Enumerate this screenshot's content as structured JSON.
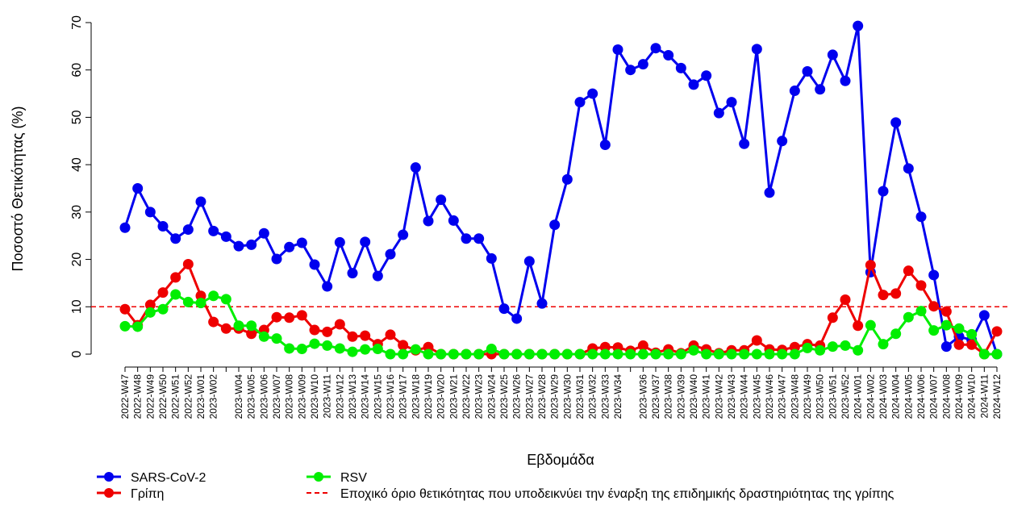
{
  "chart_data": {
    "type": "line",
    "x_label": "Εβδομάδα",
    "y_label": "Ποσοστό Θετικότητας (%)",
    "categories": [
      "2022-W47",
      "2022-W48",
      "2022-W49",
      "2022-W50",
      "2022-W51",
      "2022-W52",
      "2023-W01",
      "2023-W02",
      null,
      "2023-W04",
      "2023-W05",
      "2023-W06",
      "2023-W07",
      "2023-W08",
      "2023-W09",
      "2023-W10",
      "2023-W11",
      "2023-W12",
      "2023-W13",
      "2023-W14",
      "2023-W15",
      "2023-W16",
      "2023-W17",
      "2023-W18",
      "2023-W19",
      "2023-W20",
      "2023-W21",
      "2023-W22",
      "2023-W23",
      "2023-W24",
      "2023-W25",
      "2023-W26",
      "2023-W27",
      "2023-W28",
      "2023-W29",
      "2023-W30",
      "2023-W31",
      "2023-W32",
      "2023-W33",
      "2023-W34",
      null,
      "2023-W36",
      "2023-W37",
      "2023-W38",
      "2023-W39",
      "2023-W40",
      "2023-W41",
      "2023-W42",
      "2023-W43",
      "2023-W44",
      "2023-W45",
      "2023-W46",
      "2023-W47",
      "2023-W48",
      "2023-W49",
      "2023-W50",
      "2023-W51",
      "2023-W52",
      "2024-W01",
      "2024-W02",
      "2024-W03",
      "2024-W04",
      "2024-W05",
      "2024-W06",
      "2024-W07",
      "2024-W08",
      "2024-W09",
      "2024-W10",
      "2024-W11",
      "2024-W12"
    ],
    "series": [
      {
        "name": "SARS-CoV-2",
        "color": "#0000ee",
        "values": [
          26.7,
          35,
          30,
          27,
          24.4,
          26.3,
          32.2,
          26,
          24.8,
          22.8,
          23.1,
          25.5,
          20.1,
          22.6,
          23.5,
          18.9,
          14.3,
          23.6,
          17.1,
          23.7,
          16.5,
          21.1,
          25.2,
          39.4,
          28.1,
          32.6,
          28.2,
          24.4,
          24.4,
          20.2,
          9.6,
          7.5,
          19.6,
          10.7,
          27.3,
          36.9,
          53.2,
          55,
          44.2,
          64.3,
          60,
          61.2,
          64.6,
          63.1,
          60.4,
          56.9,
          58.8,
          50.9,
          53.2,
          44.4,
          64.4,
          34.1,
          45,
          55.6,
          59.7,
          55.9,
          63.2,
          57.7,
          69.3,
          17.3,
          34.4,
          48.9,
          39.2,
          29,
          16.7,
          1.6,
          3.7,
          3,
          8.2,
          0
        ]
      },
      {
        "name": "Γρίπη",
        "color": "#ee0000",
        "values": [
          9.5,
          6.1,
          10.4,
          13,
          16.2,
          19,
          12.3,
          6.8,
          5.4,
          5.4,
          4.3,
          5.1,
          7.8,
          7.7,
          8.2,
          5.1,
          4.7,
          6.3,
          3.7,
          3.9,
          2.1,
          4.1,
          1.9,
          0.8,
          1.5,
          0,
          0,
          0,
          0,
          0,
          0,
          0,
          0,
          0,
          0,
          0,
          0,
          1.2,
          1.5,
          1.4,
          0.7,
          1.8,
          0.3,
          1,
          0.2,
          1.8,
          1,
          0.2,
          0.8,
          0.8,
          2.9,
          1,
          0.9,
          1.5,
          2.1,
          1.8,
          7.7,
          11.5,
          6,
          18.8,
          12.5,
          12.8,
          17.6,
          14.5,
          10.1,
          9,
          2,
          2,
          0,
          4.8
        ]
      },
      {
        "name": "RSV",
        "color": "#00ee00",
        "values": [
          5.9,
          5.8,
          8.8,
          9.5,
          12.6,
          11,
          10.8,
          12.3,
          11.6,
          6,
          6,
          3.7,
          3.3,
          1.2,
          1.1,
          2.2,
          1.8,
          1.2,
          0.5,
          1,
          1.1,
          0,
          0,
          1,
          0,
          0,
          0,
          0,
          0,
          1.1,
          0,
          0,
          0,
          0,
          0,
          0,
          0,
          0,
          0,
          0,
          0,
          0,
          0,
          0,
          0,
          0.8,
          0,
          0,
          0,
          0,
          0,
          0,
          0,
          0,
          1.3,
          0.8,
          1.6,
          1.8,
          0.8,
          6.1,
          2.1,
          4.3,
          7.8,
          9.1,
          5,
          6.1,
          5.4,
          4.2,
          0,
          0
        ]
      }
    ],
    "threshold": {
      "value": 10,
      "label": "Εποχικό όριο θετικότητας που υποδεικνύει την έναρξη της επιδημικής δραστηριότητας της γρίπης",
      "color": "#ee0000"
    },
    "ylim": [
      0,
      70
    ],
    "yticks": [
      0,
      10,
      20,
      30,
      40,
      50,
      60,
      70
    ]
  }
}
